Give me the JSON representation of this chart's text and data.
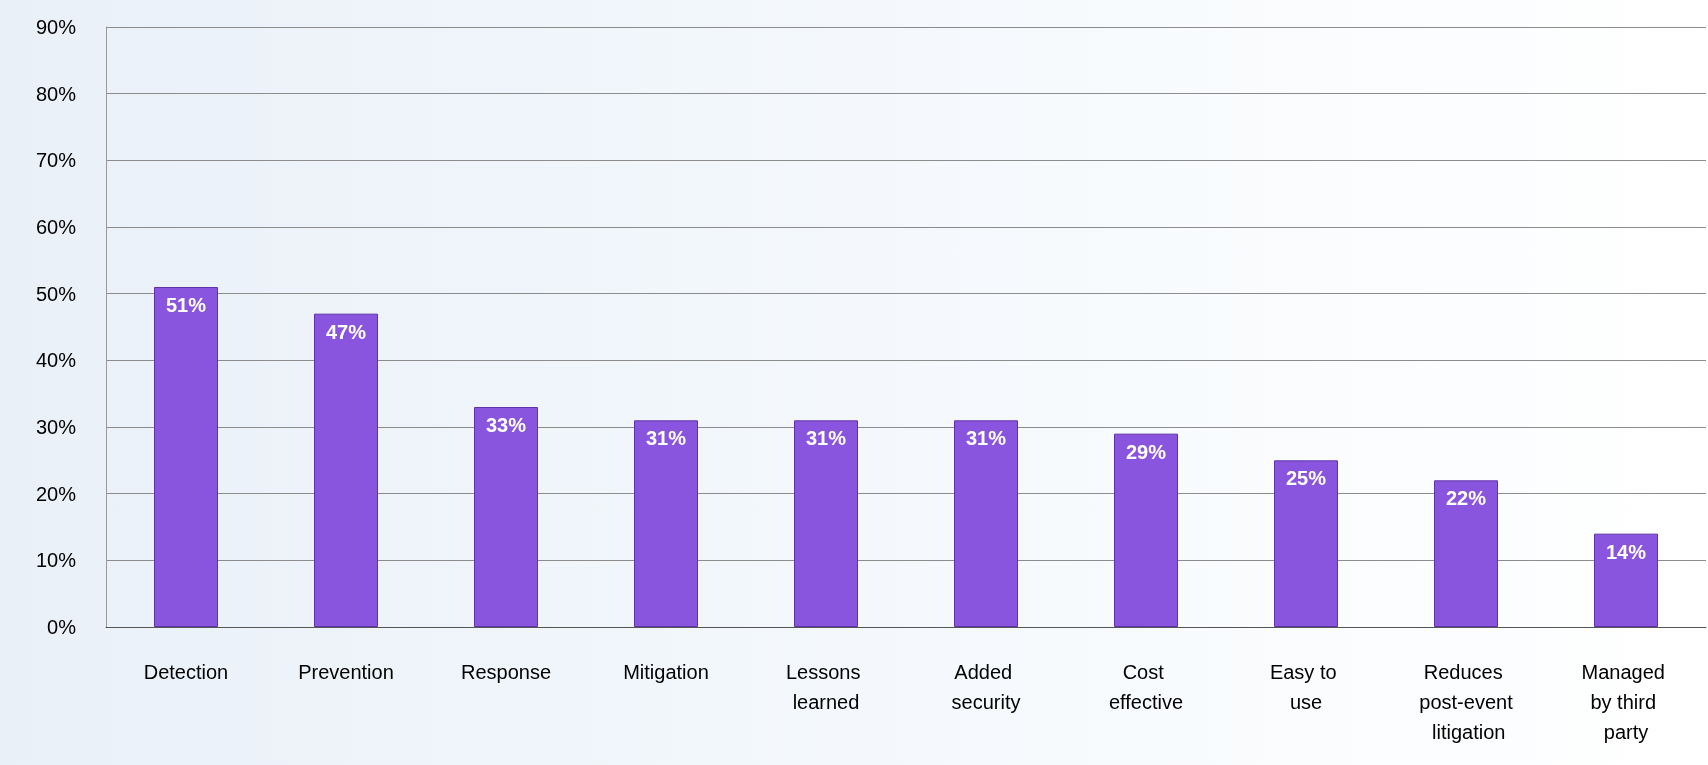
{
  "chart_data": {
    "type": "bar",
    "categories": [
      "Detection",
      "Prevention",
      "Response",
      "Mitigation",
      "Lessons learned",
      "Added security",
      "Cost effective",
      "Easy to use",
      "Reduces post-event litigation",
      "Managed by third party"
    ],
    "values": [
      51,
      47,
      33,
      31,
      31,
      31,
      29,
      25,
      22,
      14
    ],
    "value_labels": [
      "51%",
      "47%",
      "33%",
      "31%",
      "31%",
      "31%",
      "29%",
      "25%",
      "22%",
      "14%"
    ],
    "color": "#8a55de",
    "ylim": [
      0,
      90
    ],
    "yticks": [
      {
        "value": 0,
        "label": "0%"
      },
      {
        "value": 10,
        "label": "10%"
      },
      {
        "value": 20,
        "label": "20%"
      },
      {
        "value": 30,
        "label": "30%"
      },
      {
        "value": 40,
        "label": "40%"
      },
      {
        "value": 50,
        "label": "50%"
      },
      {
        "value": 60,
        "label": "60%"
      },
      {
        "value": 70,
        "label": "70%"
      },
      {
        "value": 80,
        "label": "80%"
      },
      {
        "value": 90,
        "label": "90%"
      }
    ],
    "grid": "y"
  }
}
